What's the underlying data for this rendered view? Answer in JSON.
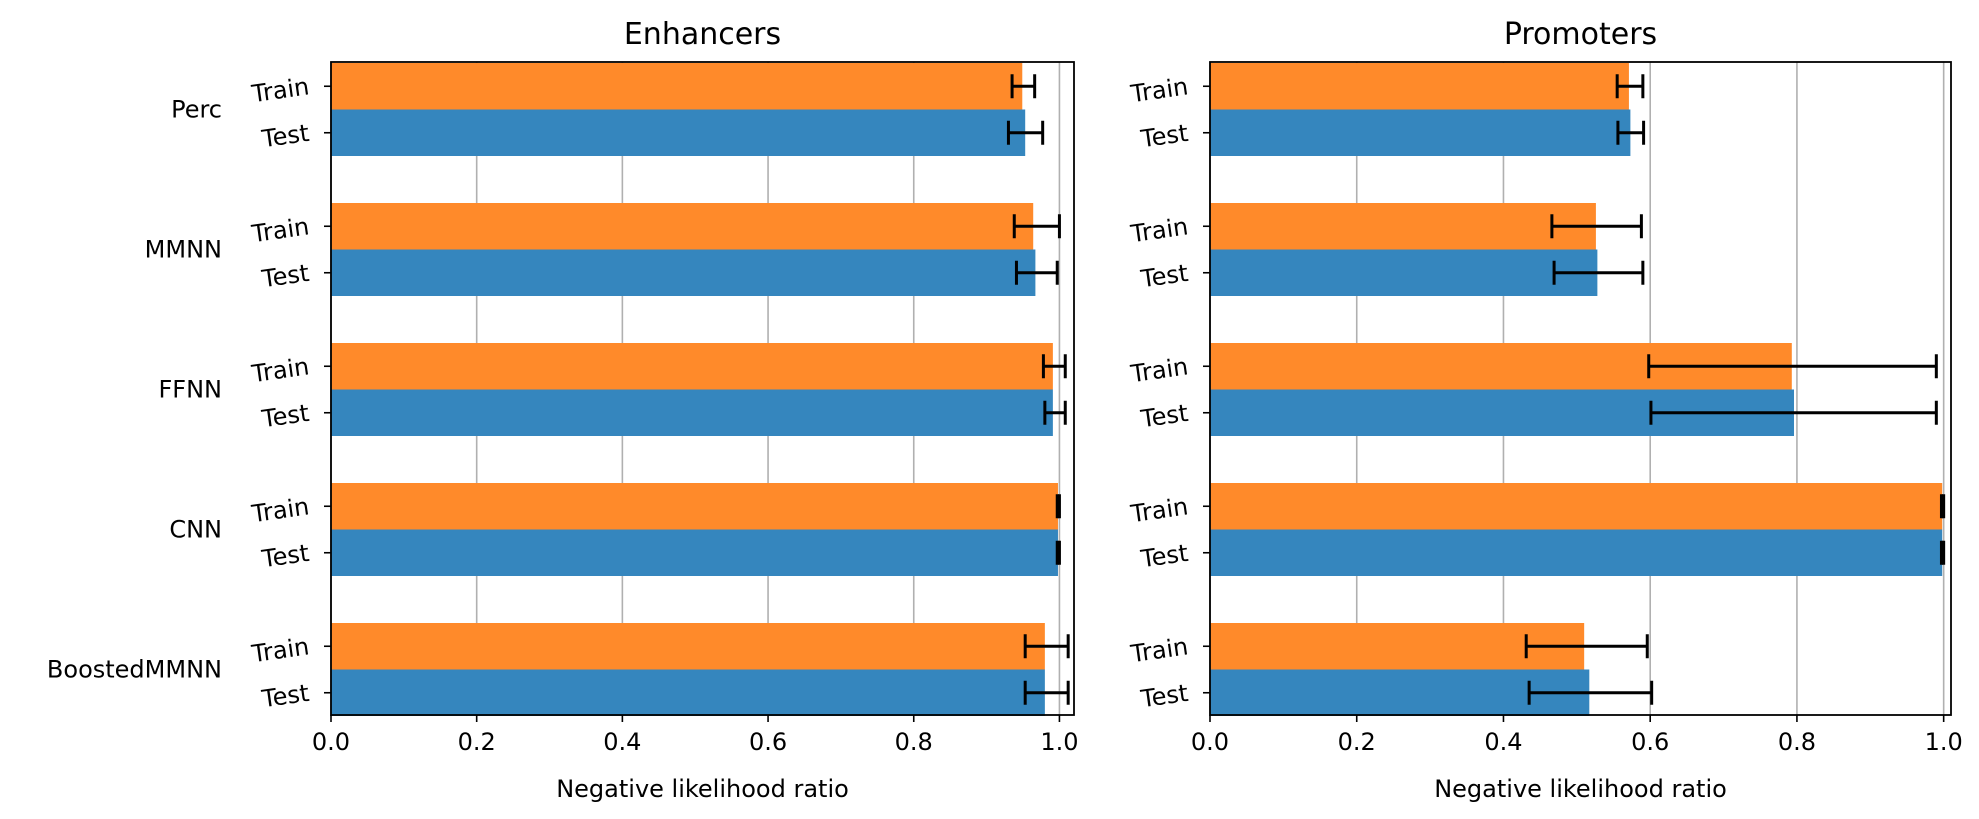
{
  "chart_data": [
    {
      "type": "bar",
      "orientation": "horizontal",
      "title": "Enhancers",
      "xlabel": "Negative likelihood ratio",
      "xlim": [
        0,
        1.02
      ],
      "xticks": [
        "0.0",
        "0.2",
        "0.4",
        "0.6",
        "0.8",
        "1.0"
      ],
      "grid": "vertical",
      "categories": [
        "Perc",
        "MMNN",
        "FFNN",
        "CNN",
        "BoostedMMNN"
      ],
      "bar_labels": [
        "Train",
        "Test"
      ],
      "series": [
        {
          "label": "Train",
          "color": "#ff8a2a",
          "values": [
            0.949,
            0.964,
            0.991,
            0.998,
            0.98
          ],
          "err_low": [
            0.935,
            0.938,
            0.978,
            0.997,
            0.953
          ],
          "err_high": [
            0.966,
            1.0,
            1.008,
            1.0,
            1.012
          ]
        },
        {
          "label": "Test",
          "color": "#3586be",
          "values": [
            0.953,
            0.967,
            0.991,
            0.998,
            0.98
          ],
          "err_low": [
            0.93,
            0.941,
            0.98,
            0.997,
            0.953
          ],
          "err_high": [
            0.977,
            0.997,
            1.008,
            1.0,
            1.012
          ]
        }
      ]
    },
    {
      "type": "bar",
      "orientation": "horizontal",
      "title": "Promoters",
      "xlabel": "Negative likelihood ratio",
      "xlim": [
        0,
        1.01
      ],
      "xticks": [
        "0.0",
        "0.2",
        "0.4",
        "0.6",
        "0.8",
        "1.0"
      ],
      "grid": "vertical",
      "categories": [
        "Perc",
        "MMNN",
        "FFNN",
        "CNN",
        "BoostedMMNN"
      ],
      "bar_labels": [
        "Train",
        "Test"
      ],
      "series": [
        {
          "label": "Train",
          "color": "#ff8a2a",
          "values": [
            0.571,
            0.526,
            0.793,
            0.998,
            0.51
          ],
          "err_low": [
            0.555,
            0.466,
            0.598,
            0.997,
            0.431
          ],
          "err_high": [
            0.59,
            0.588,
            0.99,
            1.0,
            0.596
          ]
        },
        {
          "label": "Test",
          "color": "#3586be",
          "values": [
            0.573,
            0.528,
            0.796,
            0.998,
            0.517
          ],
          "err_low": [
            0.556,
            0.469,
            0.601,
            0.997,
            0.435
          ],
          "err_high": [
            0.591,
            0.59,
            0.99,
            1.0,
            0.602
          ]
        }
      ]
    }
  ]
}
